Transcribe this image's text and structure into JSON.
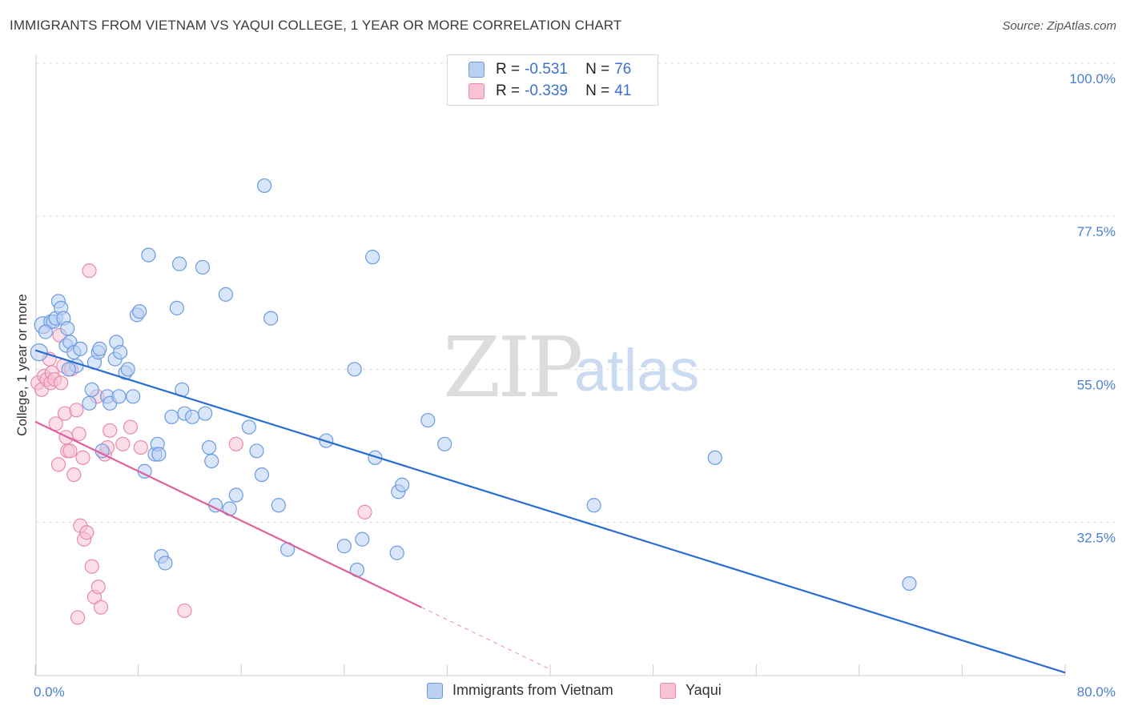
{
  "title": "IMMIGRANTS FROM VIETNAM VS YAQUI COLLEGE, 1 YEAR OR MORE CORRELATION CHART",
  "source": "Source: ZipAtlas.com",
  "watermark": {
    "zip": "ZIP",
    "atlas": "atlas"
  },
  "legend": {
    "r_label": "R =",
    "n_label": "N =",
    "rows": [
      {
        "r": "-0.531",
        "n": "76"
      },
      {
        "r": "-0.339",
        "n": "41"
      }
    ]
  },
  "bottom_legend": [
    "Immigrants from Vietnam",
    "Yaqui"
  ],
  "colors": {
    "blue_fill": "#b9d0f2",
    "blue_stroke": "#6a9be0",
    "blue_line": "#2a6dd0",
    "pink_fill": "#f7c3d4",
    "pink_stroke": "#e88aab",
    "pink_line": "#e0609a",
    "tick_text": "#4a7fd0",
    "grid": "#dddddd"
  },
  "chart_data": {
    "type": "scatter",
    "title": "IMMIGRANTS FROM VIETNAM VS YAQUI COLLEGE, 1 YEAR OR MORE CORRELATION CHART",
    "xlabel": "",
    "ylabel": "College, 1 year or more",
    "xlim": [
      0,
      80
    ],
    "ylim": [
      10,
      103
    ],
    "x_tick_labels": [
      "0.0%",
      "80.0%"
    ],
    "y_ticks": [
      32.5,
      55.0,
      77.5,
      100.0
    ],
    "y_tick_labels": [
      "32.5%",
      "55.0%",
      "77.5%",
      "100.0%"
    ],
    "grid": true,
    "legend_position": "top-center",
    "series": [
      {
        "name": "Immigrants from Vietnam",
        "r": -0.531,
        "n": 76,
        "trend": {
          "x": [
            0,
            80
          ],
          "y": [
            57.8,
            10.4
          ]
        },
        "points": [
          [
            0.6,
            61.5
          ],
          [
            1.2,
            62.0
          ],
          [
            1.4,
            62.0
          ],
          [
            1.6,
            62.5
          ],
          [
            1.8,
            65.0
          ],
          [
            2.0,
            64.0
          ],
          [
            2.2,
            62.5
          ],
          [
            2.4,
            58.5
          ],
          [
            2.5,
            61.0
          ],
          [
            2.7,
            59.0
          ],
          [
            3.0,
            57.5
          ],
          [
            3.2,
            55.5
          ],
          [
            3.5,
            58.0
          ],
          [
            4.2,
            50.0
          ],
          [
            4.4,
            52.0
          ],
          [
            4.6,
            56.0
          ],
          [
            4.9,
            57.5
          ],
          [
            5.0,
            58.0
          ],
          [
            5.2,
            43.0
          ],
          [
            5.6,
            51.0
          ],
          [
            5.8,
            50.0
          ],
          [
            6.2,
            56.5
          ],
          [
            6.3,
            59.0
          ],
          [
            6.5,
            51.0
          ],
          [
            6.6,
            57.5
          ],
          [
            7.0,
            54.5
          ],
          [
            7.2,
            55.0
          ],
          [
            7.6,
            51.0
          ],
          [
            7.9,
            63.0
          ],
          [
            8.1,
            63.5
          ],
          [
            8.5,
            40.0
          ],
          [
            8.8,
            71.8
          ],
          [
            9.3,
            42.5
          ],
          [
            9.5,
            44.0
          ],
          [
            9.6,
            42.5
          ],
          [
            9.8,
            27.5
          ],
          [
            10.1,
            26.5
          ],
          [
            10.6,
            48.0
          ],
          [
            11.0,
            64.0
          ],
          [
            11.2,
            70.5
          ],
          [
            11.4,
            52.0
          ],
          [
            11.6,
            48.5
          ],
          [
            12.2,
            48.0
          ],
          [
            13.0,
            70.0
          ],
          [
            13.2,
            48.5
          ],
          [
            13.5,
            43.5
          ],
          [
            13.7,
            41.5
          ],
          [
            14.0,
            35.0
          ],
          [
            14.8,
            66.0
          ],
          [
            15.1,
            34.5
          ],
          [
            15.6,
            36.5
          ],
          [
            16.6,
            46.5
          ],
          [
            17.2,
            43.0
          ],
          [
            17.6,
            39.5
          ],
          [
            17.8,
            82.0
          ],
          [
            18.3,
            62.5
          ],
          [
            18.9,
            35.0
          ],
          [
            19.6,
            28.5
          ],
          [
            22.6,
            44.5
          ],
          [
            24.0,
            29.0
          ],
          [
            24.8,
            55.0
          ],
          [
            25.0,
            25.5
          ],
          [
            25.4,
            30.0
          ],
          [
            26.2,
            71.5
          ],
          [
            26.4,
            42.0
          ],
          [
            28.2,
            37.0
          ],
          [
            28.5,
            38.0
          ],
          [
            28.1,
            28.0
          ],
          [
            30.5,
            47.5
          ],
          [
            31.8,
            44.0
          ],
          [
            43.4,
            35.0
          ],
          [
            52.8,
            42.0
          ],
          [
            67.9,
            23.5
          ],
          [
            0.3,
            57.5
          ],
          [
            0.8,
            60.5
          ],
          [
            2.6,
            55.0
          ]
        ]
      },
      {
        "name": "Yaqui",
        "r": -0.339,
        "n": 41,
        "trend": {
          "x": [
            0,
            30
          ],
          "y": [
            47.3,
            20.0
          ]
        },
        "trend_dashed": {
          "x": [
            30,
            40
          ],
          "y": [
            20.0,
            10.9
          ]
        },
        "points": [
          [
            0.2,
            53.0
          ],
          [
            0.5,
            52.0
          ],
          [
            0.7,
            54.0
          ],
          [
            0.9,
            53.5
          ],
          [
            1.1,
            56.5
          ],
          [
            1.2,
            53.0
          ],
          [
            1.3,
            54.5
          ],
          [
            1.5,
            53.5
          ],
          [
            1.6,
            47.0
          ],
          [
            1.8,
            41.0
          ],
          [
            1.9,
            60.0
          ],
          [
            2.0,
            53.0
          ],
          [
            2.2,
            55.5
          ],
          [
            2.3,
            48.5
          ],
          [
            2.4,
            45.0
          ],
          [
            2.5,
            43.0
          ],
          [
            2.7,
            43.0
          ],
          [
            2.8,
            55.0
          ],
          [
            3.0,
            39.5
          ],
          [
            3.2,
            49.0
          ],
          [
            3.3,
            18.5
          ],
          [
            3.4,
            45.5
          ],
          [
            3.5,
            32.0
          ],
          [
            3.7,
            42.0
          ],
          [
            3.8,
            30.0
          ],
          [
            4.0,
            31.0
          ],
          [
            4.2,
            69.5
          ],
          [
            4.4,
            26.0
          ],
          [
            4.6,
            21.5
          ],
          [
            4.8,
            51.0
          ],
          [
            4.9,
            23.0
          ],
          [
            5.1,
            20.0
          ],
          [
            5.4,
            42.5
          ],
          [
            5.6,
            43.5
          ],
          [
            5.8,
            46.0
          ],
          [
            6.8,
            44.0
          ],
          [
            7.4,
            46.5
          ],
          [
            8.2,
            43.5
          ],
          [
            11.6,
            19.5
          ],
          [
            15.6,
            44.0
          ],
          [
            25.6,
            34.0
          ]
        ]
      }
    ]
  }
}
